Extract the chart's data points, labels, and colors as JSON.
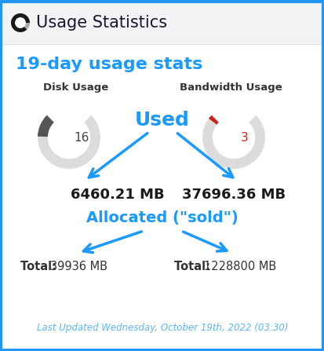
{
  "title": "Usage Statistics",
  "subtitle": "19-day usage stats",
  "disk_label": "Disk Usage",
  "bandwidth_label": "Bandwidth Usage",
  "used_label": "Used",
  "allocated_label": "Allocated (\"sold\")",
  "disk_used_value": 16,
  "bandwidth_used_value": 3,
  "disk_used_mb": "6460.21 MB",
  "bandwidth_used_mb": "37696.36 MB",
  "disk_total": "Total: 39936 MB",
  "bandwidth_total": "Total: 1228800 MB",
  "last_updated": "Last Updated Wednesday, October 19th, 2022 (03:30)",
  "bg_outer": "#e8eaed",
  "bg_header": "#f2f3f5",
  "bg_main": "#ffffff",
  "border_color": "#2196f3",
  "title_color": "#1a1a2e",
  "subtitle_color": "#1a9aff",
  "label_color": "#333333",
  "used_color": "#1a9aff",
  "allocated_color": "#1a9aff",
  "arrow_color": "#1a9aff",
  "value_color": "#1a1a1a",
  "total_bold_color": "#333333",
  "footer_color": "#5bb8ff",
  "gauge_bg_color": "#dcdcdc",
  "gauge_disk_color": "#555555",
  "gauge_bw_color": "#cc2222",
  "gauge_number_disk": "#444444",
  "gauge_number_bw": "#cc2222",
  "header_separator": "#dddddd"
}
